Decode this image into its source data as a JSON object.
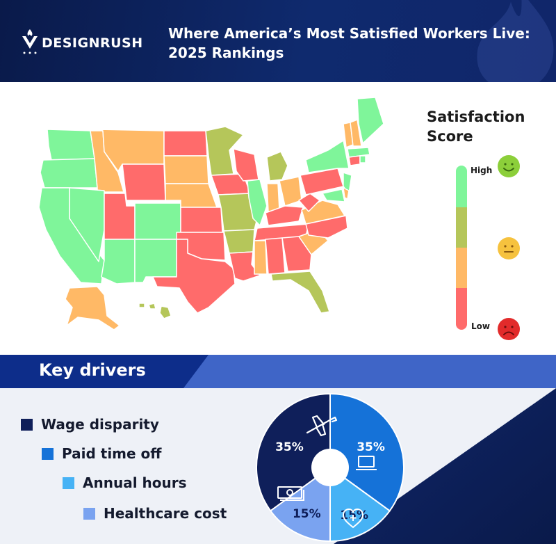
{
  "header": {
    "brand": "DESIGNRUSH",
    "title_line1": "Where America’s Most Satisfied Workers Live:",
    "title_line2": "2025 Rankings"
  },
  "legend": {
    "title_line1": "Satisfaction",
    "title_line2": "Score",
    "high_label": "High",
    "low_label": "Low",
    "colors": {
      "high": "#7ff59a",
      "mid_high": "#b5c65a",
      "mid_low": "#ffb966",
      "low": "#ff6b6b"
    }
  },
  "drivers": {
    "title": "Key drivers",
    "items": [
      {
        "label": "Wage disparity",
        "color": "#0f1f5a"
      },
      {
        "label": "Paid time off",
        "color": "#1572d8"
      },
      {
        "label": "Annual hours",
        "color": "#46b2f5"
      },
      {
        "label": "Healthcare cost",
        "color": "#7aa3f0"
      }
    ]
  },
  "chart_data": {
    "type": "pie",
    "categories": [
      "Wage disparity",
      "Paid time off",
      "Annual hours",
      "Healthcare cost"
    ],
    "values": [
      35,
      35,
      15,
      15
    ],
    "labels": [
      "35%",
      "35%",
      "15%",
      "15%"
    ]
  }
}
